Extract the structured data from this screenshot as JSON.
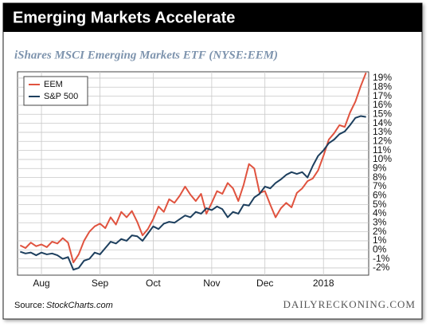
{
  "chart_data": {
    "type": "line",
    "title": "Emerging Markets Accelerate",
    "subtitle": "iShares MSCI Emerging Markets ETF (NYSE:EEM)",
    "source": {
      "label": "Source:",
      "name": "StockCharts.com"
    },
    "brand": "DAILYRECKONING.COM",
    "categories": [
      null,
      null,
      null,
      null,
      "Aug",
      null,
      null,
      null,
      null,
      null,
      null,
      null,
      null,
      null,
      null,
      "Sep",
      null,
      null,
      null,
      null,
      null,
      null,
      null,
      null,
      null,
      "Oct",
      null,
      null,
      null,
      null,
      null,
      null,
      null,
      null,
      null,
      null,
      "Nov",
      null,
      null,
      null,
      null,
      null,
      null,
      null,
      null,
      null,
      "Dec",
      null,
      null,
      null,
      null,
      null,
      null,
      null,
      null,
      null,
      null,
      "2018",
      null,
      null,
      null,
      null,
      null,
      null,
      null,
      null
    ],
    "series": [
      {
        "name": "EEM",
        "color": "#e0533f",
        "values": [
          0.5,
          0.2,
          0.8,
          0.4,
          0.6,
          0.3,
          0.9,
          0.7,
          1.3,
          0.8,
          -1.4,
          -0.5,
          1.0,
          2.0,
          2.6,
          2.9,
          2.4,
          3.6,
          2.8,
          4.2,
          3.6,
          4.3,
          3.1,
          1.6,
          2.3,
          3.4,
          4.8,
          4.2,
          5.6,
          5.2,
          6.0,
          7.0,
          6.1,
          5.4,
          6.2,
          4.0,
          5.2,
          6.5,
          6.2,
          7.4,
          6.8,
          5.4,
          7.2,
          9.5,
          9.0,
          6.3,
          6.5,
          5.0,
          3.6,
          4.6,
          5.2,
          4.7,
          6.3,
          6.8,
          7.6,
          7.9,
          8.8,
          10.4,
          12.2,
          12.9,
          13.8,
          13.6,
          15.2,
          16.4,
          18.1,
          19.6
        ]
      },
      {
        "name": "S&P 500",
        "color": "#1d3f5e",
        "values": [
          -0.2,
          -0.4,
          -0.3,
          -0.6,
          -0.3,
          -0.5,
          -0.4,
          -0.6,
          -1.0,
          -0.8,
          -2.2,
          -2.0,
          -1.2,
          -1.0,
          -0.3,
          -0.5,
          0.2,
          0.9,
          0.7,
          1.2,
          1.0,
          1.6,
          1.5,
          1.0,
          1.8,
          2.6,
          2.3,
          2.9,
          3.1,
          3.0,
          3.4,
          3.8,
          3.6,
          4.2,
          4.0,
          4.6,
          4.4,
          4.8,
          4.5,
          3.6,
          4.2,
          4.0,
          5.0,
          4.9,
          5.8,
          6.2,
          7.0,
          6.8,
          7.4,
          7.8,
          8.3,
          8.6,
          8.4,
          8.6,
          8.0,
          9.3,
          10.4,
          11.0,
          11.8,
          12.2,
          12.8,
          13.1,
          13.8,
          14.6,
          14.8,
          14.7
        ]
      }
    ],
    "ylim": [
      -2.8,
      19.7
    ],
    "yticks": [
      {
        "value": -2,
        "label": "-2%"
      },
      {
        "value": -1,
        "label": "-1%"
      },
      {
        "value": 0,
        "label": "0%"
      },
      {
        "value": 1,
        "label": "1%"
      },
      {
        "value": 2,
        "label": "2%"
      },
      {
        "value": 3,
        "label": "3%"
      },
      {
        "value": 4,
        "label": "4%"
      },
      {
        "value": 5,
        "label": "5%"
      },
      {
        "value": 6,
        "label": "6%"
      },
      {
        "value": 7,
        "label": "7%"
      },
      {
        "value": 8,
        "label": "8%"
      },
      {
        "value": 9,
        "label": "9%"
      },
      {
        "value": 10,
        "label": "10%"
      },
      {
        "value": 11,
        "label": "11%"
      },
      {
        "value": 12,
        "label": "12%"
      },
      {
        "value": 13,
        "label": "13%"
      },
      {
        "value": 14,
        "label": "14%"
      },
      {
        "value": 15,
        "label": "15%"
      },
      {
        "value": 16,
        "label": "16%"
      },
      {
        "value": 17,
        "label": "17%"
      },
      {
        "value": 18,
        "label": "18%"
      },
      {
        "value": 19,
        "label": "19%"
      }
    ],
    "grid": true,
    "legend": "top-left"
  }
}
